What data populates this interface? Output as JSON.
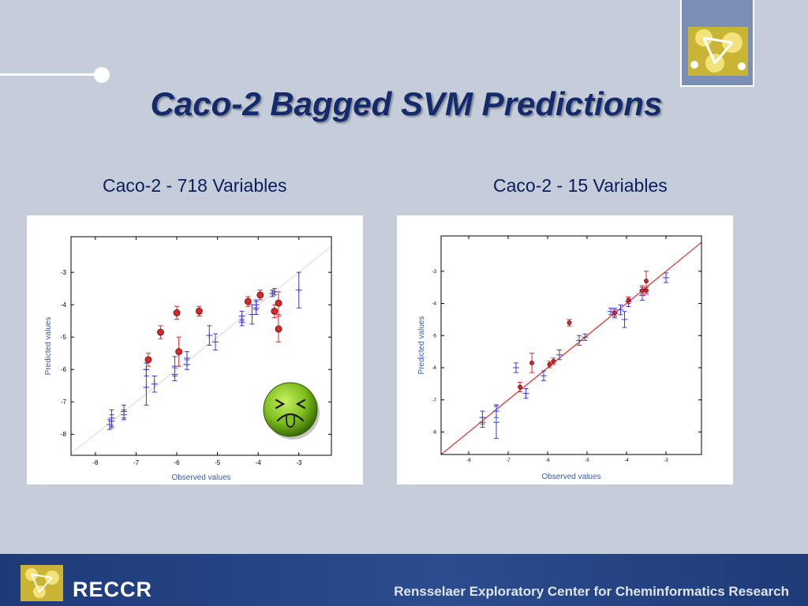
{
  "slide": {
    "title": "Caco-2 Bagged SVM  Predictions",
    "left_caption": "Caco-2 - 718 Variables",
    "right_caption": "Caco-2 - 15 Variables"
  },
  "footer": {
    "brand": "RECCR",
    "center_name": "Rensselaer Exploratory Center for Cheminformatics Research"
  },
  "colors": {
    "title": "#132a6d",
    "caption": "#0b1c5a",
    "background": "#c5cddb",
    "footer": "#23427f",
    "blue_points": "#3a3ad6",
    "red_points": "#d42a2a",
    "axis_label": "#3a5cb8"
  },
  "icons": {
    "face": "sick-face-icon",
    "logo": "molecule-logo-icon"
  },
  "chart_data": [
    {
      "type": "scatter",
      "title": "",
      "xlabel": "Observed values",
      "ylabel": "Predicted values",
      "xlim": [
        -8.6,
        -2.2
      ],
      "ylim": [
        -8.65,
        -1.9
      ],
      "xticks": [
        -8,
        -7,
        -6,
        -5,
        -4,
        -3
      ],
      "yticks": [
        -3,
        -4,
        -5,
        -6,
        -7,
        -8
      ],
      "diagonal_color": "#f2b8b8",
      "grid": false,
      "series": [
        {
          "color": "#3a3ad6",
          "marker": "plus",
          "points": [
            {
              "x": -7.6,
              "y": -7.5,
              "err": 0.25
            },
            {
              "x": -7.6,
              "y": -7.6,
              "err": 0.2
            },
            {
              "x": -7.65,
              "y": -7.7,
              "err": 0.15
            },
            {
              "x": -7.3,
              "y": -7.3,
              "err": 0.2
            },
            {
              "x": -7.3,
              "y": -7.4,
              "err": 0.15
            },
            {
              "x": -6.75,
              "y": -6.55,
              "err": 0.55
            },
            {
              "x": -6.75,
              "y": -6.0,
              "err": 0.2
            },
            {
              "x": -6.55,
              "y": -6.45,
              "err": 0.25
            },
            {
              "x": -6.05,
              "y": -5.9,
              "err": 0.3
            },
            {
              "x": -6.05,
              "y": -6.15,
              "err": 0.2
            },
            {
              "x": -5.75,
              "y": -5.65,
              "err": 0.2
            },
            {
              "x": -5.75,
              "y": -5.85,
              "err": 0.15
            },
            {
              "x": -5.2,
              "y": -4.95,
              "err": 0.3
            },
            {
              "x": -5.05,
              "y": -5.15,
              "err": 0.25
            },
            {
              "x": -4.4,
              "y": -4.35,
              "err": 0.15
            },
            {
              "x": -4.4,
              "y": -4.55,
              "err": 0.1
            },
            {
              "x": -4.15,
              "y": -4.3,
              "err": 0.3
            },
            {
              "x": -4.05,
              "y": -4.1,
              "err": 0.2
            },
            {
              "x": -4.05,
              "y": -4.0,
              "err": 0.15
            },
            {
              "x": -3.65,
              "y": -3.65,
              "err": 0.1
            },
            {
              "x": -3.6,
              "y": -3.6,
              "err": 0.1
            },
            {
              "x": -3.0,
              "y": -3.55,
              "err": 0.55
            }
          ]
        },
        {
          "color": "#d42a2a",
          "marker": "circle",
          "points": [
            {
              "x": -6.7,
              "y": -5.7,
              "err": 0.2
            },
            {
              "x": -6.4,
              "y": -4.85,
              "err": 0.2
            },
            {
              "x": -6.0,
              "y": -4.25,
              "err": 0.2
            },
            {
              "x": -5.95,
              "y": -5.45,
              "err": 0.45
            },
            {
              "x": -5.45,
              "y": -4.2,
              "err": 0.15
            },
            {
              "x": -4.25,
              "y": -3.9,
              "err": 0.15
            },
            {
              "x": -3.95,
              "y": -3.7,
              "err": 0.15
            },
            {
              "x": -3.6,
              "y": -4.2,
              "err": 0.2
            },
            {
              "x": -3.5,
              "y": -3.95,
              "err": 0.35
            },
            {
              "x": -3.5,
              "y": -4.75,
              "err": 0.4
            }
          ]
        }
      ]
    },
    {
      "type": "scatter",
      "title": "",
      "xlabel": "Observed values",
      "ylabel": "Predicted values",
      "xlim": [
        -8.7,
        -2.1
      ],
      "ylim": [
        -8.7,
        -1.9
      ],
      "xticks": [
        -8,
        -7,
        -6,
        -5,
        -4,
        -3
      ],
      "yticks": [
        -3,
        -4,
        -5,
        -6,
        -7,
        -8
      ],
      "diagonal_color": "#e02a2a",
      "grid": false,
      "series": [
        {
          "color": "#3a3ad6",
          "marker": "plus",
          "points": [
            {
              "x": -7.65,
              "y": -7.55,
              "err": 0.2
            },
            {
              "x": -7.65,
              "y": -7.7,
              "err": 0.15
            },
            {
              "x": -7.3,
              "y": -7.35,
              "err": 0.2
            },
            {
              "x": -7.3,
              "y": -7.7,
              "err": 0.5
            },
            {
              "x": -6.8,
              "y": -6.0,
              "err": 0.15
            },
            {
              "x": -6.55,
              "y": -6.8,
              "err": 0.15
            },
            {
              "x": -6.1,
              "y": -6.25,
              "err": 0.15
            },
            {
              "x": -5.7,
              "y": -5.6,
              "err": 0.15
            },
            {
              "x": -5.2,
              "y": -5.15,
              "err": 0.15
            },
            {
              "x": -5.05,
              "y": -5.05,
              "err": 0.1
            },
            {
              "x": -4.4,
              "y": -4.25,
              "err": 0.1
            },
            {
              "x": -4.3,
              "y": -4.3,
              "err": 0.15
            },
            {
              "x": -4.15,
              "y": -4.2,
              "err": 0.15
            },
            {
              "x": -4.05,
              "y": -4.5,
              "err": 0.25
            },
            {
              "x": -3.95,
              "y": -3.95,
              "err": 0.15
            },
            {
              "x": -3.6,
              "y": -3.75,
              "err": 0.15
            },
            {
              "x": -3.6,
              "y": -3.6,
              "err": 0.1
            },
            {
              "x": -3.0,
              "y": -3.2,
              "err": 0.15
            }
          ]
        },
        {
          "color": "#d42a2a",
          "marker": "circle",
          "points": [
            {
              "x": -6.7,
              "y": -6.6,
              "err": 0.15
            },
            {
              "x": -6.4,
              "y": -5.85,
              "err": 0.3
            },
            {
              "x": -5.95,
              "y": -5.9,
              "err": 0.1
            },
            {
              "x": -5.85,
              "y": -5.8,
              "err": 0.1
            },
            {
              "x": -5.45,
              "y": -4.6,
              "err": 0.1
            },
            {
              "x": -4.3,
              "y": -4.3,
              "err": 0.1
            },
            {
              "x": -3.95,
              "y": -3.9,
              "err": 0.1
            },
            {
              "x": -3.6,
              "y": -3.6,
              "err": 0.15
            },
            {
              "x": -3.5,
              "y": -3.3,
              "err": 0.3
            },
            {
              "x": -3.5,
              "y": -3.6,
              "err": 0.1
            }
          ]
        }
      ]
    }
  ]
}
